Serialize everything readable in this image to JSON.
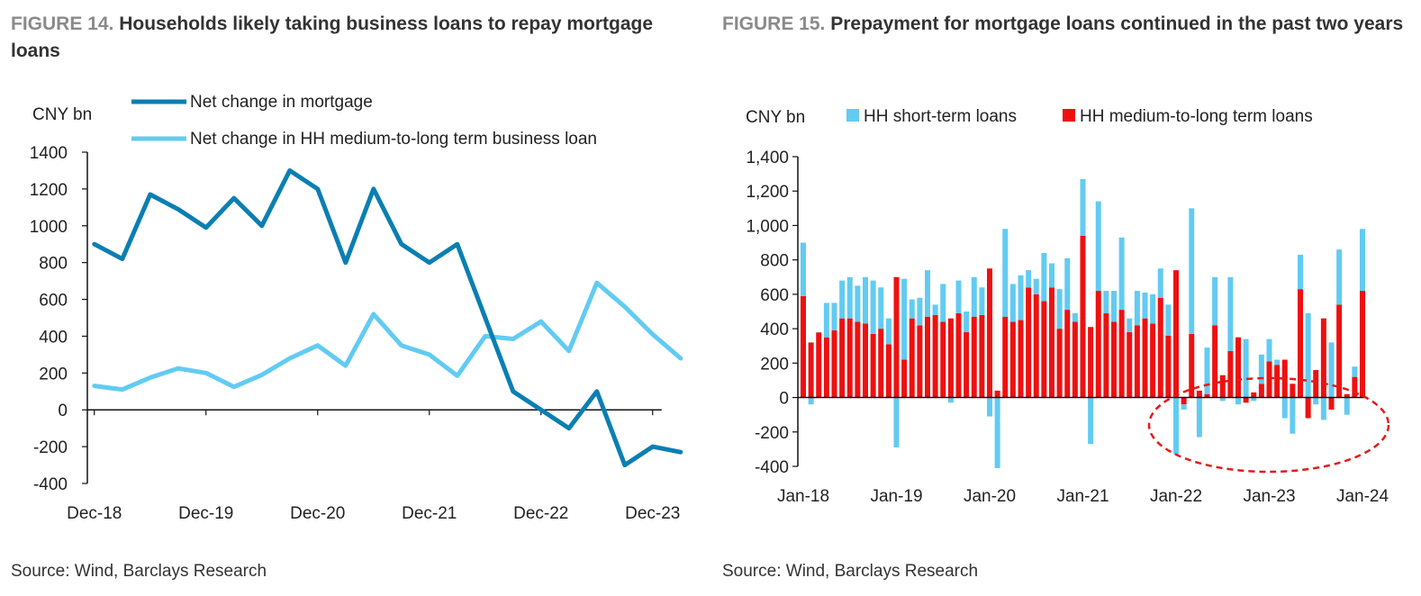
{
  "colors": {
    "mortgage": "#0a7fb2",
    "business": "#62cbf2",
    "short": "#62cbf2",
    "medium": "#ee1010",
    "highlight": "#e31b1b"
  },
  "left": {
    "figure_num": "FIGURE 14.",
    "title": "Households likely taking business loans to repay mortgage loans",
    "source": "Source: Wind, Barclays Research",
    "chart_data": {
      "type": "line",
      "ylabel": "CNY bn",
      "ylim": [
        -400,
        1400
      ],
      "yticks": [
        "1400",
        "1200",
        "1000",
        "800",
        "600",
        "400",
        "200",
        "0",
        "-200",
        "-400"
      ],
      "ytick_values": [
        1400,
        1200,
        1000,
        800,
        600,
        400,
        200,
        0,
        -200,
        -400
      ],
      "xticks": [
        "Dec-18",
        "Dec-19",
        "Dec-20",
        "Dec-21",
        "Dec-22",
        "Dec-23"
      ],
      "xtick_index": [
        0,
        4,
        8,
        12,
        16,
        20
      ],
      "series": [
        {
          "name": "Net change in mortgage",
          "key": "mortgage",
          "values": [
            900,
            820,
            1170,
            1090,
            990,
            1150,
            1000,
            1300,
            1200,
            800,
            1200,
            900,
            800,
            900,
            500,
            100,
            0,
            -100,
            100,
            -300,
            -200,
            -230
          ]
        },
        {
          "name": "Net change in HH medium-to-long term business loan",
          "key": "business",
          "values": [
            130,
            110,
            175,
            225,
            200,
            125,
            190,
            280,
            350,
            240,
            520,
            350,
            300,
            185,
            400,
            385,
            480,
            320,
            690,
            560,
            410,
            280
          ]
        }
      ],
      "x_start": -0.25
    }
  },
  "right": {
    "figure_num": "FIGURE 15.",
    "title": "Prepayment for mortgage loans continued in the past two years",
    "source": "Source: Wind, Barclays Research",
    "chart_data": {
      "type": "bar",
      "stacked": true,
      "ylabel": "CNY bn",
      "ylim": [
        -400,
        1400
      ],
      "yticks": [
        "1,400",
        "1,200",
        "1,000",
        "800",
        "600",
        "400",
        "200",
        "0",
        "-200",
        "-400"
      ],
      "ytick_values": [
        1400,
        1200,
        1000,
        800,
        600,
        400,
        200,
        0,
        -200,
        -400
      ],
      "xticks": [
        "Jan-18",
        "Jan-19",
        "Jan-20",
        "Jan-21",
        "Jan-22",
        "Jan-23",
        "Jan-24"
      ],
      "xtick_index": [
        0,
        12,
        24,
        36,
        48,
        60,
        72
      ],
      "series": [
        {
          "name": "HH short-term loans",
          "key": "short",
          "values": [
            310,
            -40,
            0,
            200,
            160,
            220,
            240,
            210,
            270,
            310,
            240,
            150,
            -290,
            470,
            110,
            160,
            270,
            60,
            220,
            -30,
            190,
            120,
            230,
            160,
            -110,
            -410,
            510,
            220,
            260,
            100,
            90,
            280,
            140,
            230,
            300,
            50,
            330,
            -270,
            520,
            130,
            180,
            420,
            80,
            200,
            150,
            170,
            170,
            180,
            -330,
            -30,
            730,
            -230,
            270,
            280,
            -20,
            430,
            -40,
            340,
            -20,
            170,
            130,
            30,
            -120,
            -210,
            200,
            490,
            -40,
            -130,
            320,
            320,
            -100,
            60,
            360
          ]
        },
        {
          "name": "HH medium-to-long term loans",
          "key": "medium",
          "values": [
            590,
            320,
            380,
            350,
            390,
            460,
            460,
            440,
            430,
            370,
            400,
            310,
            700,
            220,
            460,
            420,
            470,
            480,
            440,
            460,
            490,
            380,
            470,
            480,
            750,
            40,
            470,
            440,
            450,
            640,
            600,
            560,
            640,
            400,
            510,
            440,
            940,
            410,
            620,
            490,
            440,
            510,
            380,
            420,
            460,
            430,
            580,
            360,
            740,
            -40,
            370,
            40,
            20,
            420,
            130,
            270,
            350,
            -30,
            30,
            80,
            210,
            190,
            220,
            80,
            630,
            -120,
            160,
            460,
            -70,
            540,
            20,
            120,
            620
          ]
        }
      ],
      "annotation": "dashed ellipse highlighting negative short-term loans since 2022"
    }
  }
}
